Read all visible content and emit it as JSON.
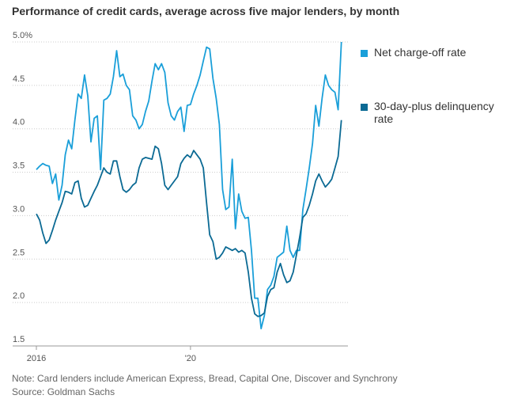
{
  "chart_data": {
    "type": "line",
    "title": "Performance of credit cards, average across five major lenders, by month",
    "note": "Note: Card lenders include American Express, Bread, Capital One, Discover and Synchrony",
    "source": "Source: Goldman Sachs",
    "categories": [
      "2016",
      null,
      null,
      null,
      null,
      null,
      null,
      null,
      null,
      null,
      null,
      null,
      null,
      null,
      null,
      null,
      null,
      null,
      null,
      null,
      null,
      null,
      null,
      null,
      null,
      null,
      null,
      null,
      null,
      null,
      null,
      null,
      null,
      null,
      null,
      null,
      null,
      null,
      null,
      null,
      null,
      null,
      null,
      null,
      null,
      null,
      null,
      null,
      "'20",
      null,
      null,
      null,
      null,
      null,
      null,
      null,
      null,
      null,
      null,
      null,
      null,
      null,
      null,
      null,
      null,
      null,
      null,
      null,
      null,
      null,
      null,
      null,
      null,
      null,
      null,
      null,
      null,
      null,
      null,
      null,
      null,
      null,
      null,
      null,
      null,
      null,
      null,
      null,
      null,
      null,
      null,
      null,
      null,
      null,
      null,
      null
    ],
    "ylim": [
      1.5,
      5.0
    ],
    "yticks": [
      1.5,
      {
        "value": 2,
        "label": "2.0"
      },
      2.5,
      {
        "value": 3,
        "label": "3.0"
      },
      3.5,
      {
        "value": 4,
        "label": "4.0"
      },
      4.5,
      {
        "value": 5,
        "label": "5.0%"
      }
    ],
    "grid": true,
    "series": [
      {
        "name": "Net charge-off rate",
        "color": "#1a9fd9",
        "values": [
          3.53,
          3.57,
          3.6,
          3.58,
          3.57,
          3.37,
          3.48,
          3.18,
          3.35,
          3.7,
          3.87,
          3.77,
          4.1,
          4.4,
          4.35,
          4.62,
          4.38,
          3.85,
          4.12,
          4.15,
          3.53,
          4.33,
          4.35,
          4.4,
          4.6,
          4.9,
          4.6,
          4.63,
          4.5,
          4.45,
          4.15,
          4.1,
          4.0,
          4.05,
          4.2,
          4.32,
          4.55,
          4.75,
          4.68,
          4.75,
          4.65,
          4.3,
          4.15,
          4.1,
          4.2,
          4.25,
          3.97,
          4.27,
          4.28,
          4.4,
          4.5,
          4.62,
          4.78,
          4.94,
          4.92,
          4.58,
          4.35,
          4.05,
          3.3,
          3.07,
          3.1,
          3.65,
          2.85,
          3.25,
          3.05,
          2.97,
          2.98,
          2.6,
          2.05,
          2.05,
          1.7,
          1.85,
          2.15,
          2.2,
          2.3,
          2.52,
          2.55,
          2.58,
          2.88,
          2.6,
          2.52,
          2.6,
          2.6,
          3.07,
          3.3,
          3.55,
          3.83,
          4.27,
          4.03,
          4.35,
          4.62,
          4.5,
          4.45,
          4.42,
          4.22,
          5.0
        ]
      },
      {
        "name": "30-day-plus delinquency rate",
        "color": "#0b6a94",
        "values": [
          3.02,
          2.95,
          2.8,
          2.68,
          2.72,
          2.83,
          2.95,
          3.05,
          3.15,
          3.28,
          3.27,
          3.25,
          3.38,
          3.4,
          3.2,
          3.1,
          3.12,
          3.2,
          3.28,
          3.35,
          3.45,
          3.55,
          3.5,
          3.48,
          3.63,
          3.63,
          3.45,
          3.3,
          3.27,
          3.3,
          3.35,
          3.38,
          3.55,
          3.65,
          3.67,
          3.66,
          3.65,
          3.8,
          3.77,
          3.6,
          3.35,
          3.3,
          3.35,
          3.4,
          3.45,
          3.6,
          3.66,
          3.7,
          3.67,
          3.75,
          3.7,
          3.65,
          3.55,
          3.15,
          2.78,
          2.7,
          2.5,
          2.52,
          2.57,
          2.64,
          2.62,
          2.6,
          2.62,
          2.58,
          2.6,
          2.57,
          2.35,
          2.05,
          1.87,
          1.84,
          1.85,
          1.88,
          2.07,
          2.15,
          2.17,
          2.35,
          2.45,
          2.32,
          2.23,
          2.25,
          2.35,
          2.55,
          2.75,
          2.98,
          3.02,
          3.12,
          3.25,
          3.4,
          3.48,
          3.4,
          3.33,
          3.37,
          3.42,
          3.55,
          3.68,
          4.1
        ]
      }
    ]
  }
}
